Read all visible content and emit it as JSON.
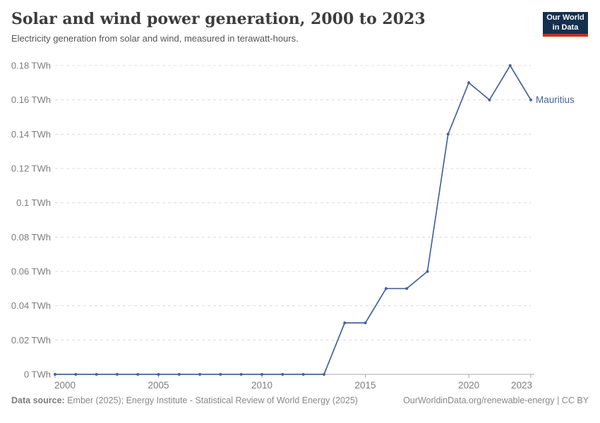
{
  "header": {
    "title": "Solar and wind power generation, 2000 to 2023",
    "subtitle": "Electricity generation from solar and wind, measured in terawatt-hours.",
    "logo": {
      "line1": "Our World",
      "line2": "in Data",
      "bg_color": "#14304E",
      "bar_color": "#CD2D23"
    }
  },
  "chart_data": {
    "type": "line",
    "title": "Solar and wind power generation, 2000 to 2023",
    "xlabel": "",
    "ylabel": "",
    "unit": "TWh",
    "xlim": [
      2000,
      2023
    ],
    "ylim": [
      0,
      0.18
    ],
    "grid": "horizontal-dashed",
    "legend_position": "end-of-line-label",
    "x": [
      2000,
      2001,
      2002,
      2003,
      2004,
      2005,
      2006,
      2007,
      2008,
      2009,
      2010,
      2011,
      2012,
      2013,
      2014,
      2015,
      2016,
      2017,
      2018,
      2019,
      2020,
      2021,
      2022,
      2023
    ],
    "series": [
      {
        "name": "Mauritius",
        "color": "#46649B",
        "values": [
          0,
          0,
          0,
          0,
          0,
          0,
          0,
          0,
          0,
          0,
          0,
          0,
          0,
          0,
          0.03,
          0.03,
          0.05,
          0.05,
          0.06,
          0.14,
          0.17,
          0.16,
          0.18,
          0.16
        ]
      }
    ],
    "y_ticks": [
      {
        "v": 0,
        "label": "0 TWh"
      },
      {
        "v": 0.02,
        "label": "0.02 TWh"
      },
      {
        "v": 0.04,
        "label": "0.04 TWh"
      },
      {
        "v": 0.06,
        "label": "0.06 TWh"
      },
      {
        "v": 0.08,
        "label": "0.08 TWh"
      },
      {
        "v": 0.1,
        "label": "0.1 TWh"
      },
      {
        "v": 0.12,
        "label": "0.12 TWh"
      },
      {
        "v": 0.14,
        "label": "0.14 TWh"
      },
      {
        "v": 0.16,
        "label": "0.16 TWh"
      },
      {
        "v": 0.18,
        "label": "0.18 TWh"
      }
    ],
    "x_ticks": [
      {
        "v": 2000,
        "label": "2000"
      },
      {
        "v": 2005,
        "label": "2005"
      },
      {
        "v": 2010,
        "label": "2010"
      },
      {
        "v": 2015,
        "label": "2015"
      },
      {
        "v": 2020,
        "label": "2020"
      },
      {
        "v": 2023,
        "label": "2023"
      }
    ],
    "colors": {
      "grid": "#DCDCDC",
      "axis": "#A8A8A8",
      "tick_text": "#7D7D7D"
    }
  },
  "footer": {
    "source_label": "Data source:",
    "source_text": " Ember (2025); Energy Institute - Statistical Review of World Energy (2025)",
    "link_text": "OurWorldinData.org/renewable-energy | CC BY"
  }
}
